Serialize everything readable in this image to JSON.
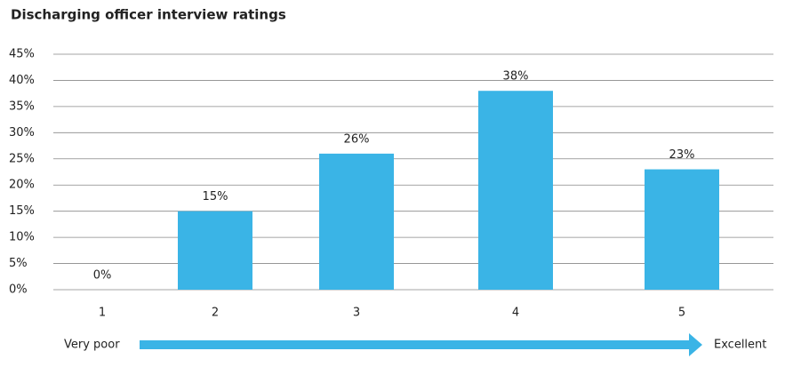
{
  "chart_data": {
    "type": "bar",
    "title": "Discharging officer interview ratings",
    "categories": [
      "1",
      "2",
      "3",
      "4",
      "5"
    ],
    "values": [
      0,
      15,
      26,
      38,
      23
    ],
    "value_labels": [
      "0%",
      "15%",
      "26%",
      "38%",
      "23%"
    ],
    "color": "#3ab4e6",
    "ylim": [
      0,
      45
    ],
    "yticks": [
      {
        "value": 0,
        "label": "0%"
      },
      {
        "value": 5,
        "label": "5%"
      },
      {
        "value": 10,
        "label": "10%"
      },
      {
        "value": 15,
        "label": "15%"
      },
      {
        "value": 20,
        "label": "20%"
      },
      {
        "value": 25,
        "label": "25%"
      },
      {
        "value": 30,
        "label": "30%"
      },
      {
        "value": 35,
        "label": "35%"
      },
      {
        "value": 40,
        "label": "40%"
      },
      {
        "value": 45,
        "label": "45%"
      }
    ],
    "grid": true,
    "annotations": [
      "Very poor",
      "Excellent"
    ]
  }
}
